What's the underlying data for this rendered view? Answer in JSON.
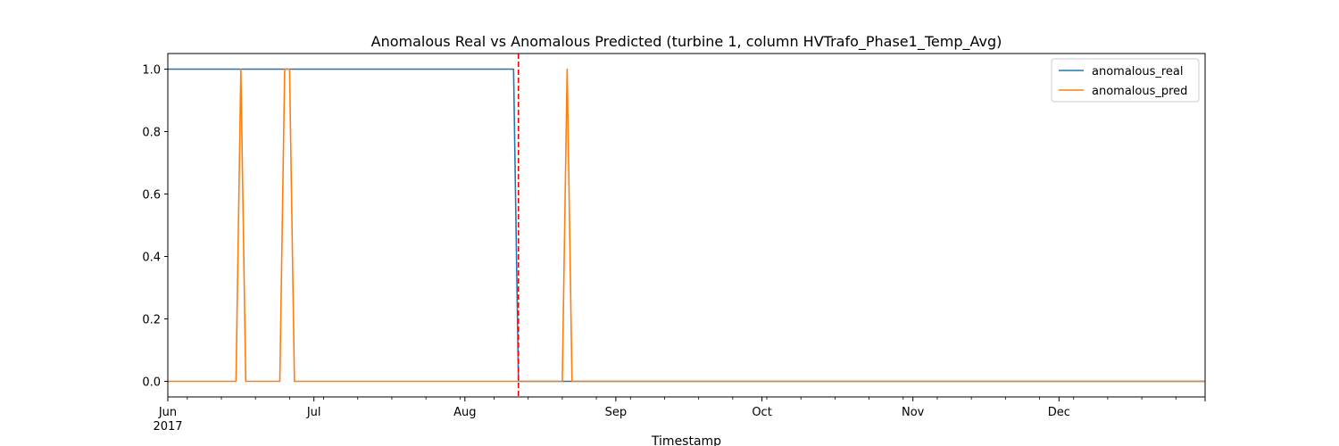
{
  "chart_data": {
    "type": "line",
    "title": "Anomalous Real vs Anomalous Predicted (turbine 1, column HVTrafo_Phase1_Temp_Avg)",
    "xlabel": "Timestamp",
    "ylabel": "",
    "xlim": [
      "2017-06-01",
      "2017-12-31"
    ],
    "ylim": [
      -0.05,
      1.05
    ],
    "grid": false,
    "legend_position": "upper right",
    "x_ticks": [
      {
        "date": "2017-06-01",
        "label": "Jun",
        "sublabel": "2017"
      },
      {
        "date": "2017-07-01",
        "label": "Jul"
      },
      {
        "date": "2017-08-01",
        "label": "Aug"
      },
      {
        "date": "2017-09-01",
        "label": "Sep"
      },
      {
        "date": "2017-10-01",
        "label": "Oct"
      },
      {
        "date": "2017-11-01",
        "label": "Nov"
      },
      {
        "date": "2017-12-01",
        "label": "Dec"
      }
    ],
    "y_ticks": [
      0.0,
      0.2,
      0.4,
      0.6,
      0.8,
      1.0
    ],
    "y_tick_labels": [
      "0.0",
      "0.2",
      "0.4",
      "0.6",
      "0.8",
      "1.0"
    ],
    "series": [
      {
        "name": "anomalous_real",
        "color": "#1f77b4",
        "points": [
          {
            "x": "2017-06-01",
            "y": 1
          },
          {
            "x": "2017-08-11",
            "y": 1
          },
          {
            "x": "2017-08-12",
            "y": 0
          },
          {
            "x": "2017-12-31",
            "y": 0
          }
        ]
      },
      {
        "name": "anomalous_pred",
        "color": "#ff7f0e",
        "points": [
          {
            "x": "2017-06-01",
            "y": 0
          },
          {
            "x": "2017-06-15",
            "y": 0
          },
          {
            "x": "2017-06-16",
            "y": 1
          },
          {
            "x": "2017-06-17",
            "y": 0
          },
          {
            "x": "2017-06-24",
            "y": 0
          },
          {
            "x": "2017-06-25",
            "y": 1
          },
          {
            "x": "2017-06-26",
            "y": 1
          },
          {
            "x": "2017-06-27",
            "y": 0
          },
          {
            "x": "2017-08-21",
            "y": 0
          },
          {
            "x": "2017-08-22",
            "y": 1
          },
          {
            "x": "2017-08-23",
            "y": 0
          },
          {
            "x": "2017-12-31",
            "y": 0
          }
        ]
      }
    ],
    "vline": {
      "x": "2017-08-12",
      "color": "#ff0000",
      "style": "dashed"
    }
  }
}
